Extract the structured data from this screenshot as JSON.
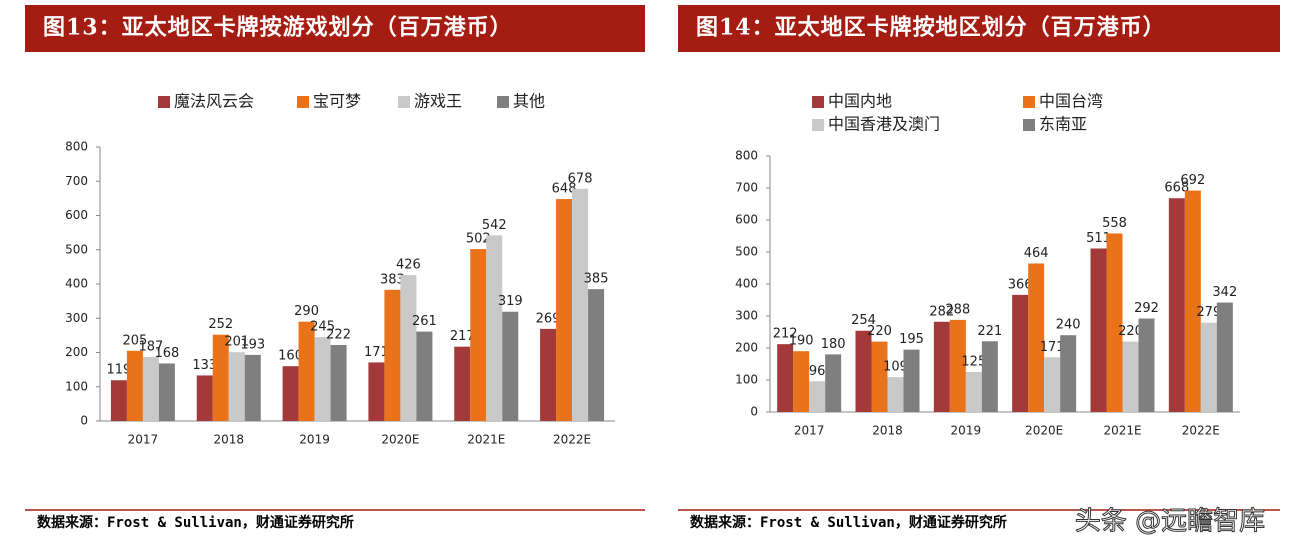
{
  "chart_data": [
    {
      "type": "bar",
      "title": "图13：亚太地区卡牌按游戏划分（百万港币）",
      "categories": [
        "2017",
        "2018",
        "2019",
        "2020E",
        "2021E",
        "2022E"
      ],
      "series": [
        {
          "name": "魔法风云会",
          "color": "#a33a3a",
          "values": [
            119,
            133,
            160,
            171,
            217,
            269
          ]
        },
        {
          "name": "宝可梦",
          "color": "#e8731a",
          "values": [
            205,
            252,
            290,
            383,
            502,
            648
          ]
        },
        {
          "name": "游戏王",
          "color": "#c9c9c9",
          "values": [
            187,
            201,
            245,
            426,
            542,
            678
          ]
        },
        {
          "name": "其他",
          "color": "#7f7f7f",
          "values": [
            168,
            193,
            222,
            261,
            319,
            385
          ]
        }
      ],
      "ylim": [
        0,
        800
      ],
      "yticks": [
        0,
        100,
        200,
        300,
        400,
        500,
        600,
        700,
        800
      ],
      "source": "数据来源：Frost & Sullivan，财通证券研究所"
    },
    {
      "type": "bar",
      "title": "图14：亚太地区卡牌按地区划分（百万港币）",
      "categories": [
        "2017",
        "2018",
        "2019",
        "2020E",
        "2021E",
        "2022E"
      ],
      "series": [
        {
          "name": "中国内地",
          "color": "#a33a3a",
          "values": [
            212,
            254,
            282,
            366,
            511,
            668
          ]
        },
        {
          "name": "中国台湾",
          "color": "#e8731a",
          "values": [
            190,
            220,
            288,
            464,
            558,
            692
          ]
        },
        {
          "name": "中国香港及澳门",
          "color": "#c9c9c9",
          "values": [
            96,
            109,
            125,
            171,
            220,
            279
          ]
        },
        {
          "name": "东南亚",
          "color": "#7f7f7f",
          "values": [
            180,
            195,
            221,
            240,
            292,
            342
          ]
        }
      ],
      "ylim": [
        0,
        800
      ],
      "yticks": [
        0,
        100,
        200,
        300,
        400,
        500,
        600,
        700,
        800
      ],
      "source": "数据来源：Frost & Sullivan，财通证券研究所"
    }
  ],
  "watermark": "头条 @远瞻智库"
}
